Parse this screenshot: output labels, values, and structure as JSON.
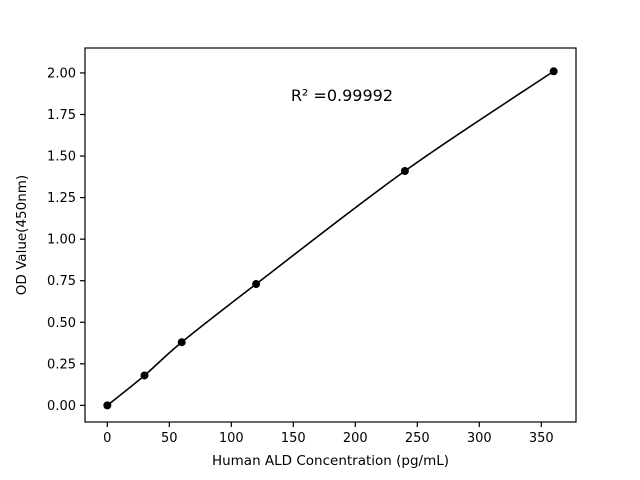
{
  "figure": {
    "background": "#ffffff",
    "line_color": "#000000",
    "marker_color": "#000000",
    "spine_color": "#000000"
  },
  "chart_data": {
    "type": "line",
    "title": "",
    "xlabel": "Human ALD Concentration (pg/mL)",
    "ylabel": "OD Value(450nm)",
    "x": [
      0,
      30,
      60,
      120,
      240,
      360
    ],
    "y": [
      0.0,
      0.18,
      0.38,
      0.73,
      1.41,
      2.01
    ],
    "xlim": [
      -18,
      378
    ],
    "ylim": [
      -0.1,
      2.15
    ],
    "xticks": [
      0,
      50,
      100,
      150,
      200,
      250,
      300,
      350
    ],
    "yticks": [
      0.0,
      0.25,
      0.5,
      0.75,
      1.0,
      1.25,
      1.5,
      1.75,
      2.0
    ],
    "ytick_decimals": 2,
    "grid": false,
    "legend": null,
    "marker": "circle",
    "marker_radius": 4,
    "line_width": 1.6,
    "annotation": {
      "text": "R² =0.99992",
      "x": 148,
      "y": 1.83
    }
  }
}
